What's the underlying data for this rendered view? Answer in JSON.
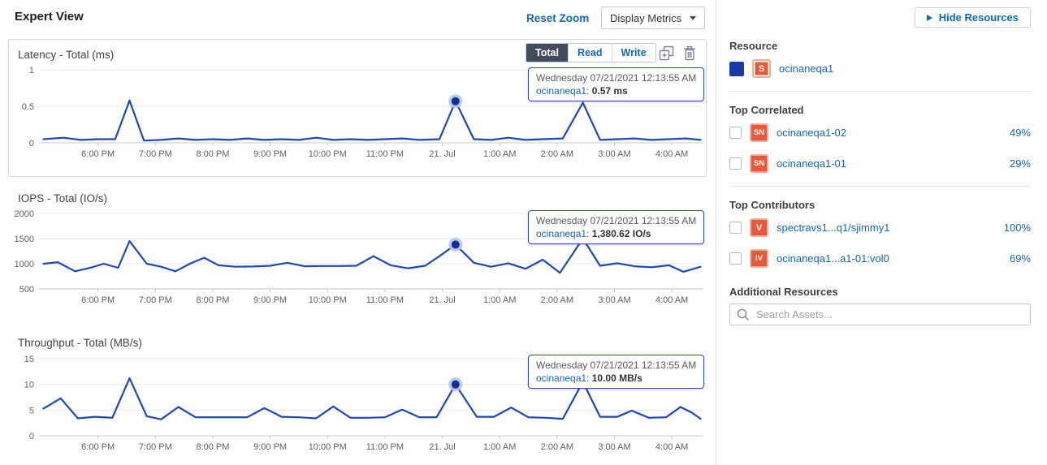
{
  "header": {
    "title": "Expert View",
    "reset_zoom_label": "Reset Zoom",
    "display_metrics_label": "Display Metrics"
  },
  "latency_toolbar": {
    "buttons": [
      {
        "label": "Total",
        "selected": true
      },
      {
        "label": "Read",
        "selected": false
      },
      {
        "label": "Write",
        "selected": false
      }
    ]
  },
  "colors": {
    "line": "#1e46bd",
    "marker": "#12308f",
    "marker_halo": "#b7c4ea",
    "link": "#1467b3",
    "badge_orange": "#e8593c",
    "selected_toggle": "#414c5c"
  },
  "chart_data": [
    {
      "type": "line",
      "title": "Latency - Total (ms)",
      "ylabel": "ms",
      "series_name": "ocinaneqa1",
      "ymin": 0,
      "ymax": 1,
      "yticks": [
        {
          "v": 1,
          "label": "1"
        },
        {
          "v": 0.5,
          "label": "0.5"
        },
        {
          "v": 0,
          "label": "0"
        }
      ],
      "xticks": [
        {
          "t": 18,
          "label": "6:00 PM"
        },
        {
          "t": 19,
          "label": "7:00 PM"
        },
        {
          "t": 20,
          "label": "8:00 PM"
        },
        {
          "t": 21,
          "label": "9:00 PM"
        },
        {
          "t": 22,
          "label": "10:00 PM"
        },
        {
          "t": 23,
          "label": "11:00 PM"
        },
        {
          "t": 24,
          "label": "21. Jul"
        },
        {
          "t": 25,
          "label": "1:00 AM"
        },
        {
          "t": 26,
          "label": "2:00 AM"
        },
        {
          "t": 27,
          "label": "3:00 AM"
        },
        {
          "t": 28,
          "label": "4:00 AM"
        }
      ],
      "points": [
        [
          17.05,
          0.05
        ],
        [
          17.4,
          0.07
        ],
        [
          17.7,
          0.04
        ],
        [
          18.0,
          0.05
        ],
        [
          18.3,
          0.05
        ],
        [
          18.55,
          0.58
        ],
        [
          18.8,
          0.03
        ],
        [
          19.1,
          0.04
        ],
        [
          19.4,
          0.06
        ],
        [
          19.7,
          0.04
        ],
        [
          20.0,
          0.05
        ],
        [
          20.3,
          0.04
        ],
        [
          20.6,
          0.06
        ],
        [
          20.9,
          0.04
        ],
        [
          21.2,
          0.05
        ],
        [
          21.5,
          0.04
        ],
        [
          21.8,
          0.07
        ],
        [
          22.1,
          0.04
        ],
        [
          22.4,
          0.05
        ],
        [
          22.7,
          0.04
        ],
        [
          23.0,
          0.05
        ],
        [
          23.3,
          0.06
        ],
        [
          23.6,
          0.04
        ],
        [
          23.95,
          0.05
        ],
        [
          24.23,
          0.57
        ],
        [
          24.55,
          0.05
        ],
        [
          24.85,
          0.04
        ],
        [
          25.15,
          0.07
        ],
        [
          25.45,
          0.04
        ],
        [
          25.75,
          0.05
        ],
        [
          26.1,
          0.06
        ],
        [
          26.45,
          0.55
        ],
        [
          26.75,
          0.04
        ],
        [
          27.05,
          0.05
        ],
        [
          27.35,
          0.06
        ],
        [
          27.65,
          0.04
        ],
        [
          27.95,
          0.05
        ],
        [
          28.25,
          0.06
        ],
        [
          28.5,
          0.04
        ]
      ],
      "marker": {
        "t": 24.23,
        "v": 0.57
      },
      "tooltip": {
        "date": "Wednesday 07/21/2021 12:13:55 AM",
        "series": "ocinaneqa1:",
        "value": "0.57 ms"
      }
    },
    {
      "type": "line",
      "title": "IOPS - Total (IO/s)",
      "ylabel": "IO/s",
      "series_name": "ocinaneqa1",
      "ymin": 500,
      "ymax": 2000,
      "yticks": [
        {
          "v": 2000,
          "label": "2000"
        },
        {
          "v": 1500,
          "label": "1500"
        },
        {
          "v": 1000,
          "label": "1000"
        },
        {
          "v": 500,
          "label": "500"
        }
      ],
      "xticks": [
        {
          "t": 18,
          "label": "6:00 PM"
        },
        {
          "t": 19,
          "label": "7:00 PM"
        },
        {
          "t": 20,
          "label": "8:00 PM"
        },
        {
          "t": 21,
          "label": "9:00 PM"
        },
        {
          "t": 22,
          "label": "10:00 PM"
        },
        {
          "t": 23,
          "label": "11:00 PM"
        },
        {
          "t": 24,
          "label": "21. Jul"
        },
        {
          "t": 25,
          "label": "1:00 AM"
        },
        {
          "t": 26,
          "label": "2:00 AM"
        },
        {
          "t": 27,
          "label": "3:00 AM"
        },
        {
          "t": 28,
          "label": "4:00 AM"
        }
      ],
      "points": [
        [
          17.05,
          1000
        ],
        [
          17.3,
          1030
        ],
        [
          17.6,
          850
        ],
        [
          17.9,
          930
        ],
        [
          18.1,
          1000
        ],
        [
          18.35,
          920
        ],
        [
          18.55,
          1450
        ],
        [
          18.85,
          1000
        ],
        [
          19.1,
          940
        ],
        [
          19.35,
          850
        ],
        [
          19.6,
          1000
        ],
        [
          19.85,
          1120
        ],
        [
          20.1,
          970
        ],
        [
          20.4,
          940
        ],
        [
          20.7,
          945
        ],
        [
          21.0,
          960
        ],
        [
          21.3,
          1020
        ],
        [
          21.6,
          950
        ],
        [
          21.9,
          955
        ],
        [
          22.2,
          955
        ],
        [
          22.5,
          960
        ],
        [
          22.8,
          1150
        ],
        [
          23.1,
          970
        ],
        [
          23.4,
          910
        ],
        [
          23.7,
          960
        ],
        [
          23.95,
          1150
        ],
        [
          24.23,
          1380.62
        ],
        [
          24.55,
          1020
        ],
        [
          24.85,
          940
        ],
        [
          25.15,
          1010
        ],
        [
          25.45,
          900
        ],
        [
          25.75,
          1080
        ],
        [
          26.05,
          820
        ],
        [
          26.45,
          1500
        ],
        [
          26.75,
          960
        ],
        [
          27.05,
          1010
        ],
        [
          27.35,
          950
        ],
        [
          27.65,
          930
        ],
        [
          27.95,
          970
        ],
        [
          28.2,
          840
        ],
        [
          28.5,
          940
        ]
      ],
      "marker": {
        "t": 24.23,
        "v": 1380.62
      },
      "tooltip": {
        "date": "Wednesday 07/21/2021 12:13:55 AM",
        "series": "ocinaneqa1:",
        "value": "1,380.62 IO/s"
      }
    },
    {
      "type": "line",
      "title": "Throughput - Total (MB/s)",
      "ylabel": "MB/s",
      "series_name": "ocinaneqa1",
      "ymin": 0,
      "ymax": 15,
      "yticks": [
        {
          "v": 15,
          "label": "15"
        },
        {
          "v": 10,
          "label": "10"
        },
        {
          "v": 5,
          "label": "5"
        },
        {
          "v": 0,
          "label": "0"
        }
      ],
      "xticks": [
        {
          "t": 18,
          "label": "6:00 PM"
        },
        {
          "t": 19,
          "label": "7:00 PM"
        },
        {
          "t": 20,
          "label": "8:00 PM"
        },
        {
          "t": 21,
          "label": "9:00 PM"
        },
        {
          "t": 22,
          "label": "10:00 PM"
        },
        {
          "t": 23,
          "label": "11:00 PM"
        },
        {
          "t": 24,
          "label": "21. Jul"
        },
        {
          "t": 25,
          "label": "1:00 AM"
        },
        {
          "t": 26,
          "label": "2:00 AM"
        },
        {
          "t": 27,
          "label": "3:00 AM"
        },
        {
          "t": 28,
          "label": "4:00 AM"
        }
      ],
      "points": [
        [
          17.05,
          5.3
        ],
        [
          17.35,
          7.3
        ],
        [
          17.65,
          3.4
        ],
        [
          17.95,
          3.7
        ],
        [
          18.25,
          3.5
        ],
        [
          18.55,
          11.2
        ],
        [
          18.85,
          3.8
        ],
        [
          19.1,
          3.2
        ],
        [
          19.4,
          5.6
        ],
        [
          19.7,
          3.6
        ],
        [
          20.0,
          3.6
        ],
        [
          20.3,
          3.6
        ],
        [
          20.6,
          3.6
        ],
        [
          20.9,
          5.4
        ],
        [
          21.2,
          3.7
        ],
        [
          21.5,
          3.6
        ],
        [
          21.8,
          3.4
        ],
        [
          22.1,
          5.7
        ],
        [
          22.4,
          3.5
        ],
        [
          22.7,
          3.5
        ],
        [
          23.0,
          3.6
        ],
        [
          23.3,
          5.1
        ],
        [
          23.6,
          3.6
        ],
        [
          23.9,
          3.6
        ],
        [
          24.23,
          10.0
        ],
        [
          24.6,
          3.7
        ],
        [
          24.9,
          3.7
        ],
        [
          25.2,
          5.5
        ],
        [
          25.5,
          3.6
        ],
        [
          25.8,
          3.5
        ],
        [
          26.1,
          3.3
        ],
        [
          26.45,
          10.5
        ],
        [
          26.75,
          3.7
        ],
        [
          27.05,
          3.7
        ],
        [
          27.3,
          4.9
        ],
        [
          27.6,
          3.5
        ],
        [
          27.9,
          3.6
        ],
        [
          28.15,
          5.6
        ],
        [
          28.35,
          4.5
        ],
        [
          28.5,
          3.3
        ]
      ],
      "marker": {
        "t": 24.23,
        "v": 10.0
      },
      "tooltip": {
        "date": "Wednesday 07/21/2021 12:13:55 AM",
        "series": "ocinaneqa1:",
        "value": "10.00 MB/s"
      }
    }
  ],
  "sidebar": {
    "hide_resources_label": "Hide Resources",
    "resource": {
      "heading": "Resource",
      "items": [
        {
          "badge": "S",
          "name": "ocinaneqa1"
        }
      ]
    },
    "top_correlated": {
      "heading": "Top Correlated",
      "items": [
        {
          "badge": "SN",
          "name": "ocinaneqa1-02",
          "pct": "49%"
        },
        {
          "badge": "SN",
          "name": "ocinaneqa1-01",
          "pct": "29%"
        }
      ]
    },
    "top_contributors": {
      "heading": "Top Contributors",
      "items": [
        {
          "badge": "V",
          "name": "spectravs1...q1/sjimmy1",
          "pct": "100%"
        },
        {
          "badge": "IV",
          "name": "ocinaneqa1...a1-01:vol0",
          "pct": "69%"
        }
      ]
    },
    "additional_resources": {
      "heading": "Additional Resources",
      "search_placeholder": "Search Assets..."
    }
  }
}
